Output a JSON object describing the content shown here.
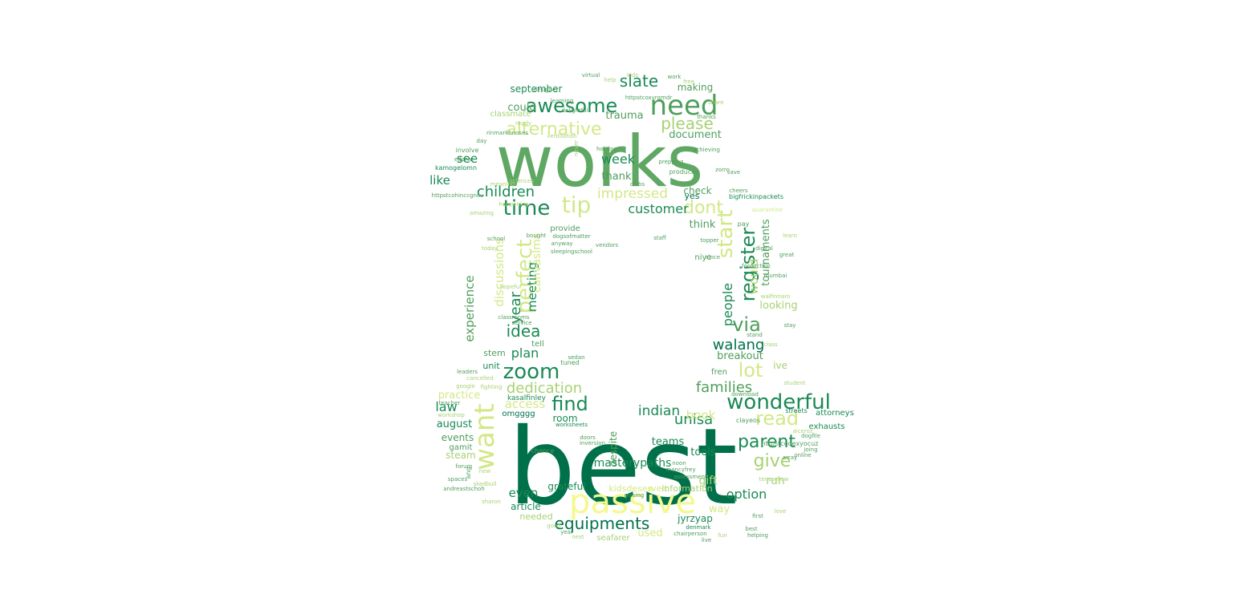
{
  "palette": [
    "#00704a",
    "#1a8a55",
    "#4f9e5c",
    "#7ab865",
    "#a7d273",
    "#d2e887",
    "#f4f98f"
  ],
  "words": [
    {
      "text": "best",
      "color": "#00704a"
    },
    {
      "text": "works",
      "color": "#5fa863"
    },
    {
      "text": "passive",
      "color": "#f4f98f"
    },
    {
      "text": "need",
      "color": "#4f9e5c"
    },
    {
      "text": "want",
      "color": "#d2e887"
    },
    {
      "text": "wonderful",
      "color": "#1a8a55"
    },
    {
      "text": "awesome",
      "color": "#1a8a55"
    },
    {
      "text": "alternative",
      "color": "#d2e887"
    },
    {
      "text": "equipments",
      "color": "#00704a"
    },
    {
      "text": "time",
      "color": "#1a8a55"
    },
    {
      "text": "tip",
      "color": "#d2e887"
    },
    {
      "text": "dont",
      "color": "#d2e887"
    },
    {
      "text": "zoom",
      "color": "#1a8a55"
    },
    {
      "text": "register",
      "color": "#1a8a55"
    },
    {
      "text": "start",
      "color": "#d2e887"
    },
    {
      "text": "perfect",
      "color": "#d2e887"
    },
    {
      "text": "parent",
      "color": "#1a8a55"
    },
    {
      "text": "read",
      "color": "#d2e887"
    },
    {
      "text": "give",
      "color": "#a7d273"
    },
    {
      "text": "lot",
      "color": "#d2e887"
    },
    {
      "text": "via",
      "color": "#4f9e5c"
    },
    {
      "text": "find",
      "color": "#1a8a55"
    },
    {
      "text": "slate",
      "color": "#1a8a55"
    },
    {
      "text": "please",
      "color": "#a7d273"
    },
    {
      "text": "idea",
      "color": "#1a8a55"
    },
    {
      "text": "children",
      "color": "#1a8a55"
    },
    {
      "text": "customer",
      "color": "#1a8a55"
    },
    {
      "text": "impressed",
      "color": "#d2e887"
    },
    {
      "text": "dedication",
      "color": "#a7d273"
    },
    {
      "text": "unisa",
      "color": "#1a8a55"
    },
    {
      "text": "families",
      "color": "#4f9e5c"
    },
    {
      "text": "walang",
      "color": "#00704a"
    },
    {
      "text": "year",
      "color": "#1a8a55"
    },
    {
      "text": "meeting",
      "color": "#1a8a55"
    },
    {
      "text": "experience",
      "color": "#4f9e5c"
    },
    {
      "text": "discussions",
      "color": "#d2e887"
    },
    {
      "text": "canvaslms",
      "color": "#d2e887"
    },
    {
      "text": "people",
      "color": "#1a8a55"
    },
    {
      "text": "would",
      "color": "#a7d273"
    },
    {
      "text": "tournaments",
      "color": "#4f9e5c"
    },
    {
      "text": "week",
      "color": "#1a8a55"
    },
    {
      "text": "see",
      "color": "#1a8a55"
    },
    {
      "text": "like",
      "color": "#1a8a55"
    },
    {
      "text": "could",
      "color": "#4f9e5c"
    },
    {
      "text": "trauma",
      "color": "#4f9e5c"
    },
    {
      "text": "september",
      "color": "#1a8a55"
    },
    {
      "text": "making",
      "color": "#4f9e5c"
    },
    {
      "text": "document",
      "color": "#4f9e5c"
    },
    {
      "text": "thank",
      "color": "#4f9e5c"
    },
    {
      "text": "check",
      "color": "#4f9e5c"
    },
    {
      "text": "think",
      "color": "#4f9e5c"
    },
    {
      "text": "looking",
      "color": "#a7d273"
    },
    {
      "text": "breakout",
      "color": "#4f9e5c"
    },
    {
      "text": "plan",
      "color": "#1a8a55"
    },
    {
      "text": "law",
      "color": "#1a8a55"
    },
    {
      "text": "indian",
      "color": "#1a8a55"
    },
    {
      "text": "book",
      "color": "#d2e887"
    },
    {
      "text": "access",
      "color": "#d2e887"
    },
    {
      "text": "room",
      "color": "#1a8a55"
    },
    {
      "text": "august",
      "color": "#1a8a55"
    },
    {
      "text": "events",
      "color": "#4f9e5c"
    },
    {
      "text": "steam",
      "color": "#a7d273"
    },
    {
      "text": "even",
      "color": "#1a8a55"
    },
    {
      "text": "article",
      "color": "#1a8a55"
    },
    {
      "text": "needed",
      "color": "#a7d273"
    },
    {
      "text": "masterypaths",
      "color": "#1a8a55"
    },
    {
      "text": "kidsdeserveit",
      "color": "#d2e887"
    },
    {
      "text": "information",
      "color": "#a7d273"
    },
    {
      "text": "grateful",
      "color": "#1a8a55"
    },
    {
      "text": "teams",
      "color": "#1a8a55"
    },
    {
      "text": "tools",
      "color": "#1a8a55"
    },
    {
      "text": "gift",
      "color": "#a7d273"
    },
    {
      "text": "option",
      "color": "#1a8a55"
    },
    {
      "text": "way",
      "color": "#d2e887"
    },
    {
      "text": "run",
      "color": "#a7d273"
    },
    {
      "text": "used",
      "color": "#d2e887"
    },
    {
      "text": "jyrzyap",
      "color": "#1a8a55"
    },
    {
      "text": "yes",
      "color": "#00704a"
    },
    {
      "text": "provide",
      "color": "#4f9e5c"
    },
    {
      "text": "niyo",
      "color": "#4f9e5c"
    },
    {
      "text": "stem",
      "color": "#4f9e5c"
    },
    {
      "text": "tell",
      "color": "#4f9e5c"
    },
    {
      "text": "unit",
      "color": "#1a8a55"
    },
    {
      "text": "practice",
      "color": "#d2e887"
    },
    {
      "text": "omgggg",
      "color": "#00704a"
    },
    {
      "text": "gamit",
      "color": "#4f9e5c"
    },
    {
      "text": "despite",
      "color": "#4f9e5c"
    },
    {
      "text": "fren",
      "color": "#4f9e5c"
    },
    {
      "text": "ive",
      "color": "#a7d273"
    },
    {
      "text": "attorneys",
      "color": "#1a8a55"
    },
    {
      "text": "exhausts",
      "color": "#1a8a55"
    },
    {
      "text": "seafarer",
      "color": "#a7d273"
    },
    {
      "text": "classmate",
      "color": "#a7d273"
    },
    {
      "text": "ventilation",
      "color": "#a7d273"
    },
    {
      "text": "involve",
      "color": "#4f9e5c"
    },
    {
      "text": "edchat",
      "color": "#4f9e5c"
    },
    {
      "text": "kamogelomn",
      "color": "#1a8a55"
    },
    {
      "text": "bigfrickinpackets",
      "color": "#1a8a55"
    },
    {
      "text": "cheers",
      "color": "#4f9e5c"
    },
    {
      "text": "produces",
      "color": "#4f9e5c"
    },
    {
      "text": "kasalfinley",
      "color": "#1a8a55"
    },
    {
      "text": "fighting",
      "color": "#a7d273"
    },
    {
      "text": "streets",
      "color": "#1a8a55"
    },
    {
      "text": "sciences",
      "color": "#a7d273"
    },
    {
      "text": "denmark",
      "color": "#1a8a55"
    },
    {
      "text": "chairperson",
      "color": "#4f9e5c"
    },
    {
      "text": "tuned",
      "color": "#4f9e5c"
    },
    {
      "text": "classrooms",
      "color": "#4f9e5c"
    },
    {
      "text": "service",
      "color": "#4f9e5c"
    },
    {
      "text": "vendors",
      "color": "#4f9e5c"
    },
    {
      "text": "bought",
      "color": "#4f9e5c"
    },
    {
      "text": "worksheets",
      "color": "#1a8a55"
    },
    {
      "text": "noon",
      "color": "#4f9e5c"
    },
    {
      "text": "helping",
      "color": "#4f9e5c"
    },
    {
      "text": "chance",
      "color": "#4f9e5c"
    },
    {
      "text": "doors",
      "color": "#4f9e5c"
    },
    {
      "text": "inversion",
      "color": "#4f9e5c"
    },
    {
      "text": "assessment",
      "color": "#4f9e5c"
    },
    {
      "text": "stand",
      "color": "#4f9e5c"
    },
    {
      "text": "stay",
      "color": "#4f9e5c"
    },
    {
      "text": "download",
      "color": "#4f9e5c"
    },
    {
      "text": "staff",
      "color": "#4f9e5c"
    },
    {
      "text": "topper",
      "color": "#4f9e5c"
    },
    {
      "text": "since",
      "color": "#4f9e5c"
    },
    {
      "text": "pay",
      "color": "#4f9e5c"
    },
    {
      "text": "holding",
      "color": "#4f9e5c"
    },
    {
      "text": "prepping",
      "color": "#4f9e5c"
    },
    {
      "text": "achieving",
      "color": "#4f9e5c"
    },
    {
      "text": "clubs",
      "color": "#4f9e5c"
    },
    {
      "text": "never",
      "color": "#a7d273"
    },
    {
      "text": "delightful",
      "color": "#4f9e5c"
    },
    {
      "text": "pissing",
      "color": "#4f9e5c"
    },
    {
      "text": "ang",
      "color": "#4f9e5c"
    },
    {
      "text": "save",
      "color": "#4f9e5c"
    },
    {
      "text": "mumbai",
      "color": "#4f9e5c"
    },
    {
      "text": "clayeos",
      "color": "#4f9e5c"
    },
    {
      "text": "joing",
      "color": "#4f9e5c"
    },
    {
      "text": "array",
      "color": "#4f9e5c"
    },
    {
      "text": "designer",
      "color": "#4f9e5c"
    },
    {
      "text": "spaces",
      "color": "#4f9e5c"
    },
    {
      "text": "forum",
      "color": "#4f9e5c"
    },
    {
      "text": "leaders",
      "color": "#4f9e5c"
    },
    {
      "text": "happening",
      "color": "#a7d273"
    },
    {
      "text": "httpstcoxyrgmdr",
      "color": "#4f9e5c"
    },
    {
      "text": "httpstcodexyocuz",
      "color": "#4f9e5c"
    },
    {
      "text": "dogsofmatter",
      "color": "#4f9e5c"
    },
    {
      "text": "andreastschoh",
      "color": "#4f9e5c"
    },
    {
      "text": "mancyfrey",
      "color": "#4f9e5c"
    },
    {
      "text": "hopeful",
      "color": "#a7d273"
    },
    {
      "text": "sleepingschool",
      "color": "#4f9e5c"
    },
    {
      "text": "httpstcohinccgnov",
      "color": "#4f9e5c"
    },
    {
      "text": "rinmarkhnoses",
      "color": "#4f9e5c"
    },
    {
      "text": "walfinnaro",
      "color": "#a7d273"
    },
    {
      "text": "forduction",
      "color": "#4f9e5c"
    },
    {
      "text": "aiceroz",
      "color": "#a7d273"
    },
    {
      "text": "dogfile",
      "color": "#4f9e5c"
    },
    {
      "text": "skedbull",
      "color": "#a7d273"
    },
    {
      "text": "cancelled",
      "color": "#a7d273"
    },
    {
      "text": "tensorflow",
      "color": "#a7d273"
    },
    {
      "text": "quarantine",
      "color": "#d2e887"
    },
    {
      "text": "workshop",
      "color": "#a7d273"
    },
    {
      "text": "meaning",
      "color": "#a7d273"
    },
    {
      "text": "zorro",
      "color": "#4f9e5c"
    },
    {
      "text": "sharon",
      "color": "#a7d273"
    },
    {
      "text": "anyway",
      "color": "#4f9e5c"
    },
    {
      "text": "sedan",
      "color": "#4f9e5c"
    },
    {
      "text": "learn",
      "color": "#a7d273"
    },
    {
      "text": "amazing",
      "color": "#a7d273"
    },
    {
      "text": "digital",
      "color": "#4f9e5c"
    },
    {
      "text": "google",
      "color": "#a7d273"
    },
    {
      "text": "teacher",
      "color": "#4f9e5c"
    },
    {
      "text": "student",
      "color": "#a7d273"
    },
    {
      "text": "online",
      "color": "#4f9e5c"
    },
    {
      "text": "class",
      "color": "#a7d273"
    },
    {
      "text": "school",
      "color": "#4f9e5c"
    },
    {
      "text": "today",
      "color": "#a7d273"
    },
    {
      "text": "great",
      "color": "#4f9e5c"
    },
    {
      "text": "share",
      "color": "#a7d273"
    },
    {
      "text": "thanks",
      "color": "#4f9e5c"
    },
    {
      "text": "ready",
      "color": "#a7d273"
    },
    {
      "text": "learning",
      "color": "#4f9e5c"
    },
    {
      "text": "help",
      "color": "#a7d273"
    },
    {
      "text": "virtual",
      "color": "#4f9e5c"
    },
    {
      "text": "kids",
      "color": "#a7d273"
    },
    {
      "text": "work",
      "color": "#4f9e5c"
    },
    {
      "text": "free",
      "color": "#a7d273"
    },
    {
      "text": "day",
      "color": "#4f9e5c"
    },
    {
      "text": "new",
      "color": "#a7d273"
    },
    {
      "text": "first",
      "color": "#4f9e5c"
    },
    {
      "text": "love",
      "color": "#a7d273"
    },
    {
      "text": "best",
      "color": "#4f9e5c"
    },
    {
      "text": "good",
      "color": "#a7d273"
    },
    {
      "text": "year",
      "color": "#4f9e5c"
    },
    {
      "text": "next",
      "color": "#a7d273"
    },
    {
      "text": "live",
      "color": "#4f9e5c"
    },
    {
      "text": "fun",
      "color": "#a7d273"
    }
  ]
}
